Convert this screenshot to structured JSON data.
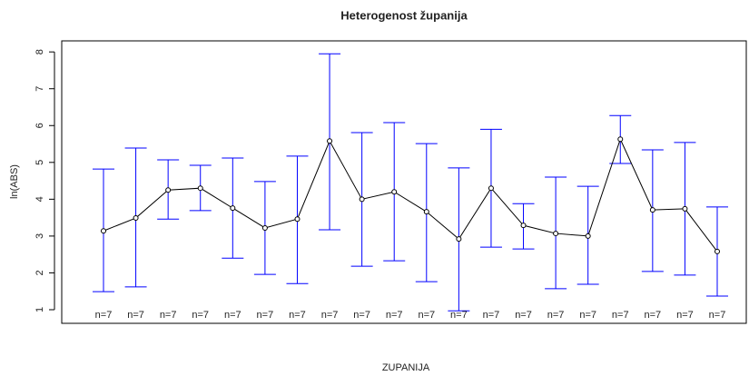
{
  "chart_data": {
    "type": "line",
    "title": "Heterogenost županija",
    "xlabel": "ZUPANIJA",
    "ylabel": "ln(ABS)",
    "categories": [
      null,
      null,
      null,
      null,
      null,
      null,
      null,
      null,
      null,
      null,
      null,
      null,
      null,
      null,
      null,
      null,
      null,
      null,
      null,
      null
    ],
    "series": [
      {
        "name": null,
        "color": "#000000",
        "values": [
          3.14,
          3.49,
          4.25,
          4.3,
          3.76,
          3.22,
          3.46,
          5.58,
          4.0,
          4.2,
          3.66,
          2.92,
          4.3,
          3.29,
          3.07,
          3.0,
          5.63,
          3.71,
          3.74,
          2.58
        ],
        "ci_upper": [
          4.82,
          5.39,
          5.07,
          4.92,
          5.12,
          4.48,
          5.17,
          7.95,
          5.81,
          6.08,
          5.51,
          4.85,
          5.9,
          3.88,
          4.6,
          4.35,
          6.27,
          5.34,
          5.54,
          3.79
        ],
        "ci_lower": [
          1.49,
          1.62,
          3.46,
          3.69,
          2.4,
          1.96,
          1.71,
          3.17,
          2.18,
          2.33,
          1.76,
          0.97,
          2.7,
          2.65,
          1.57,
          1.69,
          4.97,
          2.04,
          1.94,
          1.37
        ],
        "error_color": "#0000ff"
      }
    ],
    "n_labels": [
      "n=7",
      "n=7",
      "n=7",
      "n=7",
      "n=7",
      "n=7",
      "n=7",
      "n=7",
      "n=7",
      "n=7",
      "n=7",
      "n=7",
      "n=7",
      "n=7",
      "n=7",
      "n=7",
      "n=7",
      "n=7",
      "n=7",
      "n=7"
    ],
    "ylim": [
      0.63,
      8.3
    ],
    "yticks": [
      1,
      2,
      3,
      4,
      5,
      6,
      7,
      8
    ],
    "grid": false
  }
}
